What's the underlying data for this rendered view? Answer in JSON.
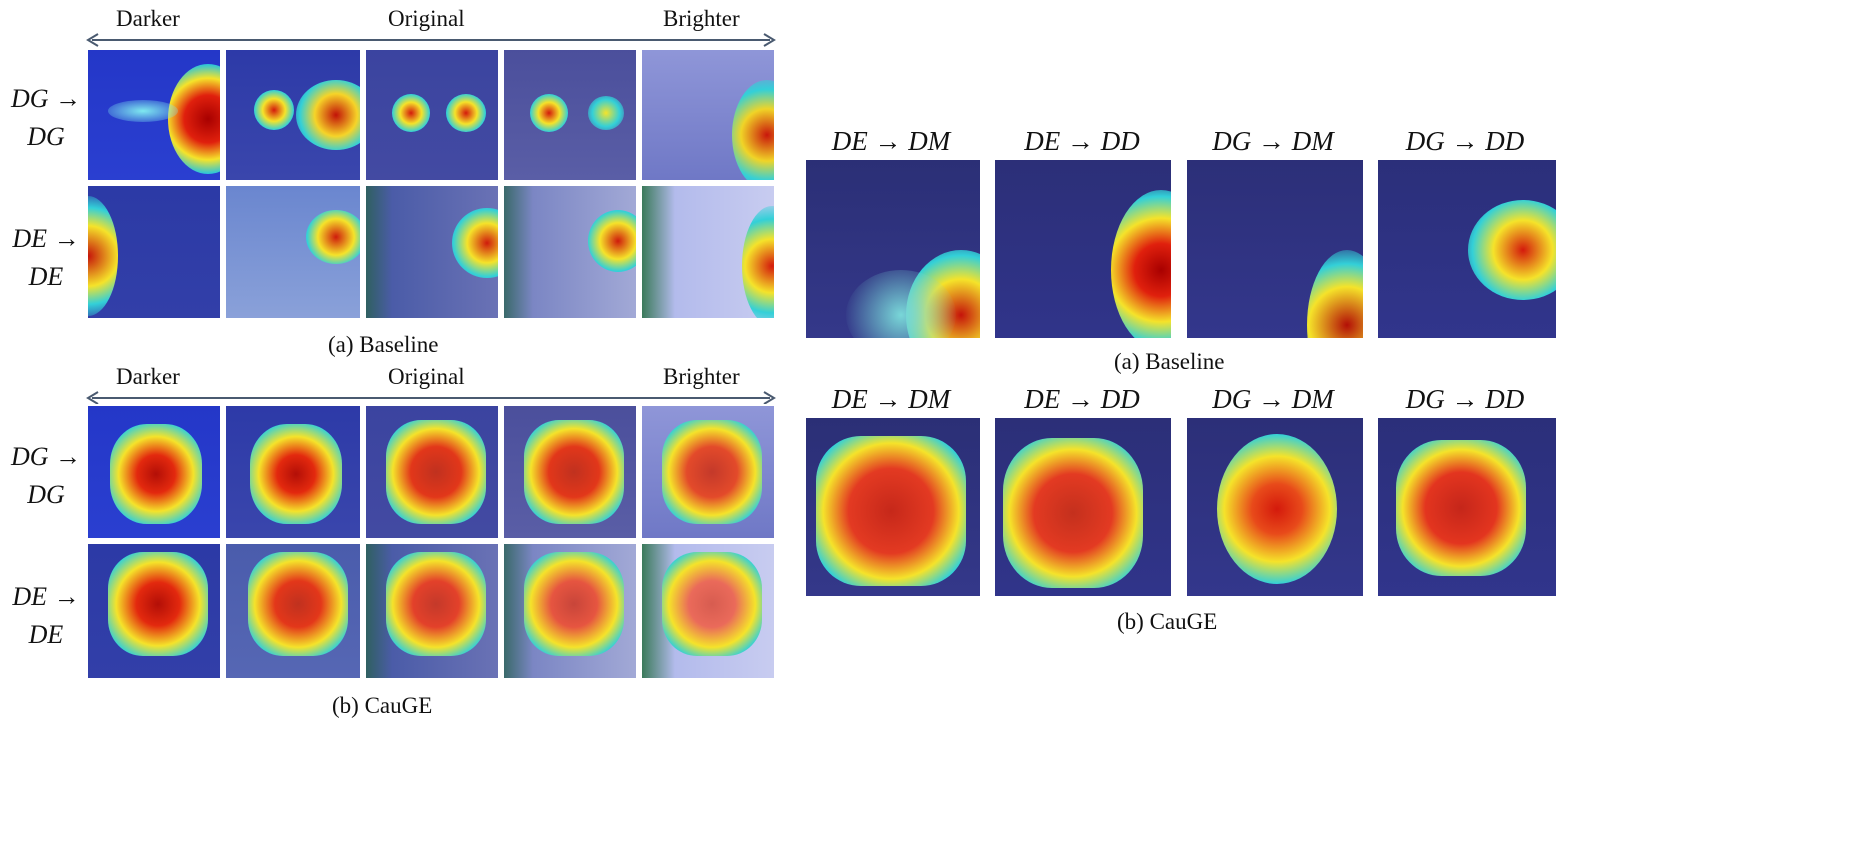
{
  "left_panel": {
    "axis_labels": {
      "darker": "Darker",
      "original": "Original",
      "brighter": "Brighter"
    },
    "row_labels": [
      {
        "line1": "DG →",
        "line2": "DG"
      },
      {
        "line1": "DE →",
        "line2": "DE"
      }
    ],
    "caption_a": "(a) Baseline",
    "caption_b": "(b) CauGE"
  },
  "right_panel": {
    "column_headers": [
      "DE → DM",
      "DE → DD",
      "DG → DM",
      "DG → DD"
    ],
    "caption_a": "(a) Baseline",
    "caption_b": "(b) CauGE"
  },
  "colors": {
    "arrow": "#4a5a70",
    "heat_hot": "#d21a0c",
    "heat_warm": "#f4e322",
    "heat_cool": "#26c7d9",
    "background_blue": "#2a319a"
  }
}
